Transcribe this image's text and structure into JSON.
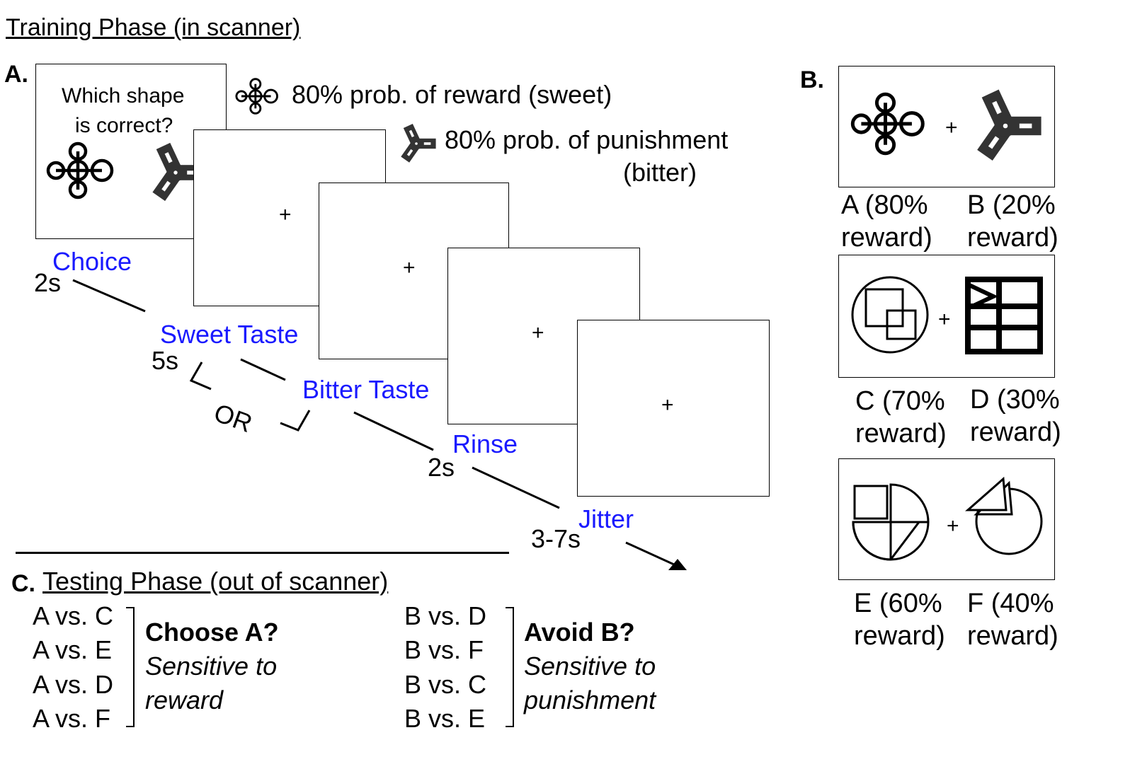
{
  "title": "Training Phase (in scanner)",
  "panel_a": {
    "label": "A.",
    "prompt_line1": "Which shape",
    "prompt_line2": "is correct?",
    "legend_reward": "80% prob. of reward (sweet)",
    "legend_punish_line1": "80% prob. of punishment",
    "legend_punish_line2": "(bitter)",
    "fixation": "+",
    "steps": [
      {
        "name": "Choice",
        "duration": "2s"
      },
      {
        "name": "Sweet Taste",
        "duration": "5s"
      },
      {
        "name": "Bitter Taste",
        "duration": ""
      },
      {
        "name": "Rinse",
        "duration": "2s"
      },
      {
        "name": "Jitter",
        "duration": "3-7s"
      }
    ],
    "or_label": "OR"
  },
  "panel_b": {
    "label": "B.",
    "separator": "+",
    "pairs": [
      {
        "left_l1": "A (80%",
        "left_l2": "reward)",
        "right_l1": "B (20%",
        "right_l2": "reward)"
      },
      {
        "left_l1": "C (70%",
        "left_l2": "reward)",
        "right_l1": "D (30%",
        "right_l2": "reward)"
      },
      {
        "left_l1": "E (60%",
        "left_l2": "reward)",
        "right_l1": "F (40%",
        "right_l2": "reward)"
      }
    ]
  },
  "panel_c": {
    "label": "C.",
    "title": "Testing Phase (out of scanner)",
    "choose": {
      "pairs": [
        "A vs. C",
        "A vs. E",
        "A vs. D",
        "A vs. F"
      ],
      "question": "Choose A?",
      "desc_l1": "Sensitive to",
      "desc_l2": "reward"
    },
    "avoid": {
      "pairs": [
        "B vs. D",
        "B vs. F",
        "B vs. C",
        "B vs. E"
      ],
      "question": "Avoid B?",
      "desc_l1": "Sensitive to",
      "desc_l2": "punishment"
    }
  }
}
